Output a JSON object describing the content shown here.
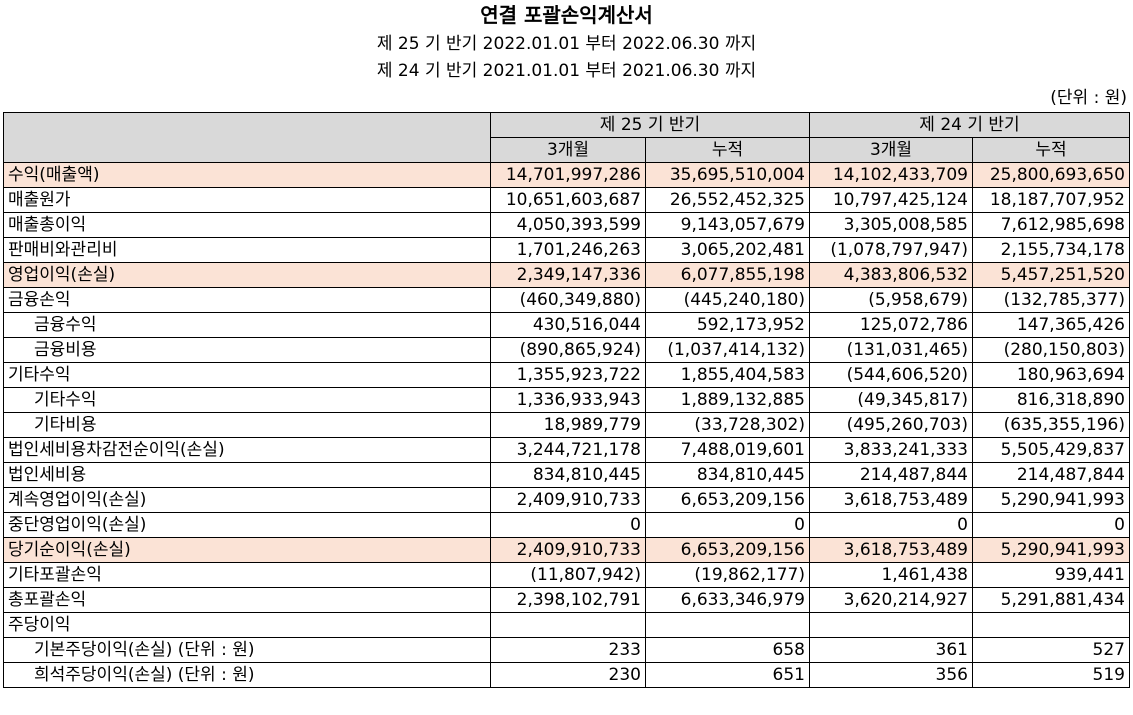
{
  "title": "연결 포괄손익계산서",
  "periods": [
    "제 25 기 반기 2022.01.01 부터 2022.06.30 까지",
    "제 24 기 반기 2021.01.01 부터 2021.06.30 까지"
  ],
  "unit": "(단위 : 원)",
  "header": {
    "group1": "제 25 기 반기",
    "group2": "제 24 기 반기",
    "sub": [
      "3개월",
      "누적",
      "3개월",
      "누적"
    ]
  },
  "colors": {
    "header_bg": "#d9d9d9",
    "highlight_bg": "#fbe3d6"
  },
  "rows": [
    {
      "label": "수익(매출액)",
      "highlight": true,
      "indent": false,
      "values": [
        "14,701,997,286",
        "35,695,510,004",
        "14,102,433,709",
        "25,800,693,650"
      ]
    },
    {
      "label": "매출원가",
      "highlight": false,
      "indent": false,
      "values": [
        "10,651,603,687",
        "26,552,452,325",
        "10,797,425,124",
        "18,187,707,952"
      ]
    },
    {
      "label": "매출총이익",
      "highlight": false,
      "indent": false,
      "values": [
        "4,050,393,599",
        "9,143,057,679",
        "3,305,008,585",
        "7,612,985,698"
      ]
    },
    {
      "label": "판매비와관리비",
      "highlight": false,
      "indent": false,
      "values": [
        "1,701,246,263",
        "3,065,202,481",
        "(1,078,797,947)",
        "2,155,734,178"
      ]
    },
    {
      "label": "영업이익(손실)",
      "highlight": true,
      "indent": false,
      "values": [
        "2,349,147,336",
        "6,077,855,198",
        "4,383,806,532",
        "5,457,251,520"
      ]
    },
    {
      "label": "금융손익",
      "highlight": false,
      "indent": false,
      "values": [
        "(460,349,880)",
        "(445,240,180)",
        "(5,958,679)",
        "(132,785,377)"
      ]
    },
    {
      "label": "금융수익",
      "highlight": false,
      "indent": true,
      "values": [
        "430,516,044",
        "592,173,952",
        "125,072,786",
        "147,365,426"
      ]
    },
    {
      "label": "금융비용",
      "highlight": false,
      "indent": true,
      "values": [
        "(890,865,924)",
        "(1,037,414,132)",
        "(131,031,465)",
        "(280,150,803)"
      ]
    },
    {
      "label": "기타수익",
      "highlight": false,
      "indent": false,
      "values": [
        "1,355,923,722",
        "1,855,404,583",
        "(544,606,520)",
        "180,963,694"
      ]
    },
    {
      "label": "기타수익",
      "highlight": false,
      "indent": true,
      "values": [
        "1,336,933,943",
        "1,889,132,885",
        "(49,345,817)",
        "816,318,890"
      ]
    },
    {
      "label": "기타비용",
      "highlight": false,
      "indent": true,
      "values": [
        "18,989,779",
        "(33,728,302)",
        "(495,260,703)",
        "(635,355,196)"
      ]
    },
    {
      "label": "법인세비용차감전순이익(손실)",
      "highlight": false,
      "indent": false,
      "values": [
        "3,244,721,178",
        "7,488,019,601",
        "3,833,241,333",
        "5,505,429,837"
      ]
    },
    {
      "label": "법인세비용",
      "highlight": false,
      "indent": false,
      "values": [
        "834,810,445",
        "834,810,445",
        "214,487,844",
        "214,487,844"
      ]
    },
    {
      "label": "계속영업이익(손실)",
      "highlight": false,
      "indent": false,
      "values": [
        "2,409,910,733",
        "6,653,209,156",
        "3,618,753,489",
        "5,290,941,993"
      ]
    },
    {
      "label": "중단영업이익(손실)",
      "highlight": false,
      "indent": false,
      "values": [
        "0",
        "0",
        "0",
        "0"
      ]
    },
    {
      "label": "당기순이익(손실)",
      "highlight": true,
      "indent": false,
      "values": [
        "2,409,910,733",
        "6,653,209,156",
        "3,618,753,489",
        "5,290,941,993"
      ]
    },
    {
      "label": "기타포괄손익",
      "highlight": false,
      "indent": false,
      "values": [
        "(11,807,942)",
        "(19,862,177)",
        "1,461,438",
        "939,441"
      ]
    },
    {
      "label": "총포괄손익",
      "highlight": false,
      "indent": false,
      "values": [
        "2,398,102,791",
        "6,633,346,979",
        "3,620,214,927",
        "5,291,881,434"
      ]
    },
    {
      "label": "주당이익",
      "highlight": false,
      "indent": false,
      "values": [
        "",
        "",
        "",
        ""
      ]
    },
    {
      "label": "기본주당이익(손실) (단위 : 원)",
      "highlight": false,
      "indent": true,
      "values": [
        "233",
        "658",
        "361",
        "527"
      ]
    },
    {
      "label": "희석주당이익(손실) (단위 : 원)",
      "highlight": false,
      "indent": true,
      "values": [
        "230",
        "651",
        "356",
        "519"
      ]
    }
  ]
}
